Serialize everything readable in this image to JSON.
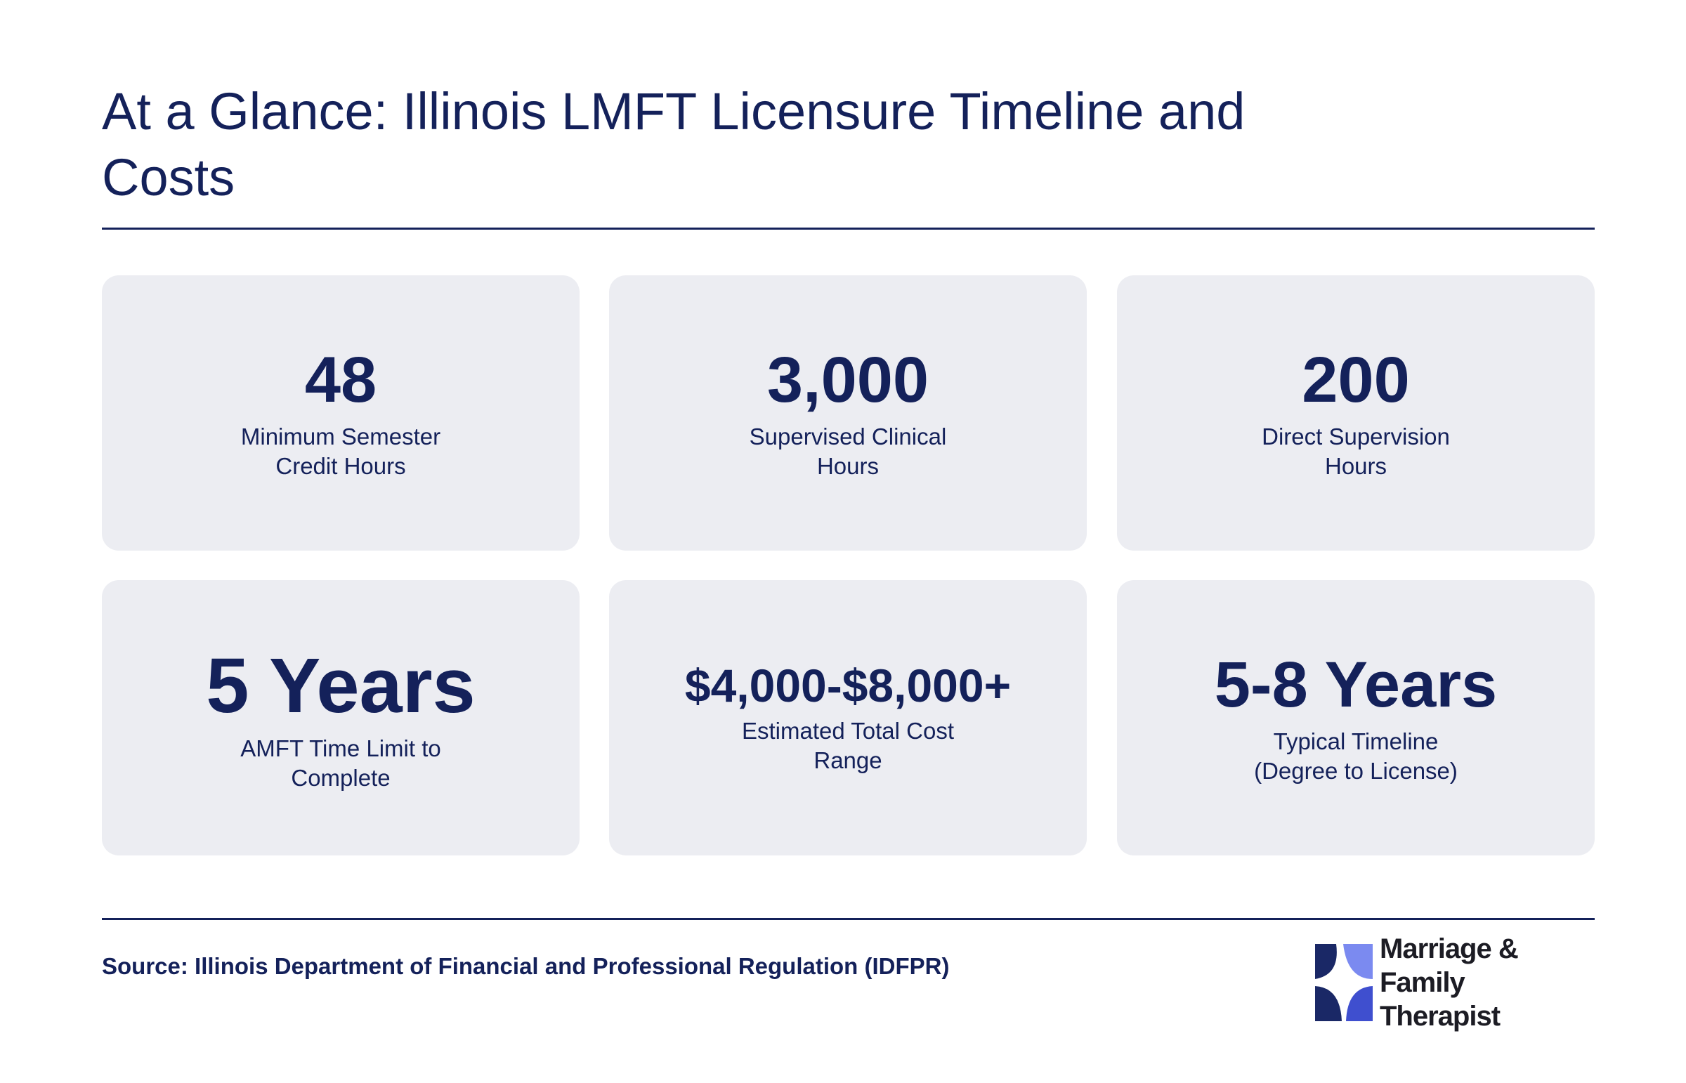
{
  "title": "At a Glance: Illinois LMFT Licensure Timeline and Costs",
  "stats": [
    {
      "value": "48",
      "label": "Minimum Semester\nCredit Hours"
    },
    {
      "value": "3,000",
      "label": "Supervised Clinical\nHours"
    },
    {
      "value": "200",
      "label": "Direct Supervision\nHours"
    },
    {
      "value": "5 Years",
      "label": "AMFT Time Limit to\nComplete"
    },
    {
      "value": "$4,000-$8,000+",
      "label": "Estimated Total Cost\nRange"
    },
    {
      "value": "5-8 Years",
      "label": "Typical Timeline\n(Degree to License)"
    }
  ],
  "source": "Source: Illinois Department of Financial and Professional Regulation (IDFPR)",
  "logo": {
    "text": "Marriage & Family\nTherapist",
    "icon": "logo-mark-icon",
    "colors": {
      "light": "#7b8af0",
      "mid": "#3f4fcf",
      "dark": "#1a2866"
    }
  },
  "colors": {
    "text": "#14215a",
    "card_background": "#ecedf2",
    "page_background": "#ffffff"
  }
}
